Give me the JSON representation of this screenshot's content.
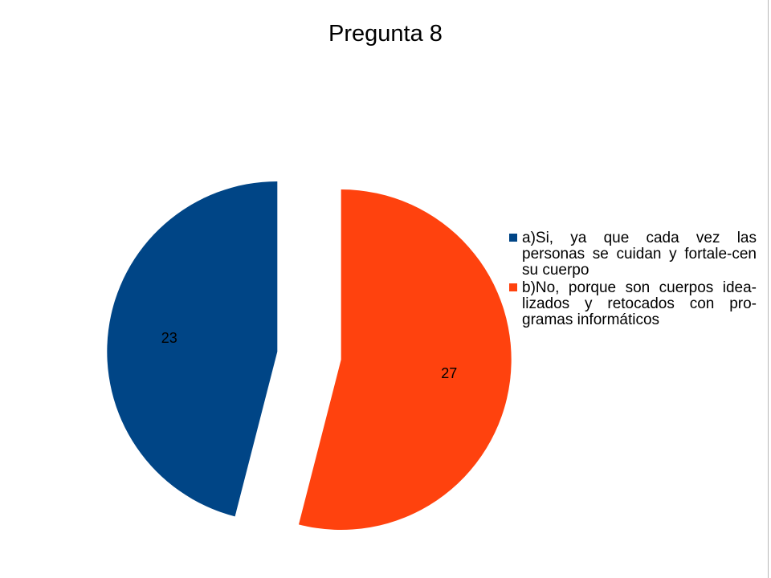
{
  "chart_data": {
    "type": "pie",
    "title": "Pregunta 8",
    "categories": [
      "a)Si, ya que cada vez las personas se cuidan y fortale-cen su cuerpo",
      "b)No, porque son cuerpos idea-lizados y retocados con pro-gramas informáticos"
    ],
    "values": [
      23,
      27
    ],
    "data_labels": [
      "23",
      "27"
    ],
    "colors": [
      "#004586",
      "#ff420e"
    ],
    "exploded": true,
    "legend_position": "right"
  },
  "legend": {
    "items": [
      {
        "label": "a)Si, ya que cada vez las personas se cuidan y fortale-cen su cuerpo",
        "color": "#004586"
      },
      {
        "label": "b)No, porque son cuerpos idea-lizados y retocados con pro-gramas informáticos",
        "color": "#ff420e"
      }
    ]
  }
}
